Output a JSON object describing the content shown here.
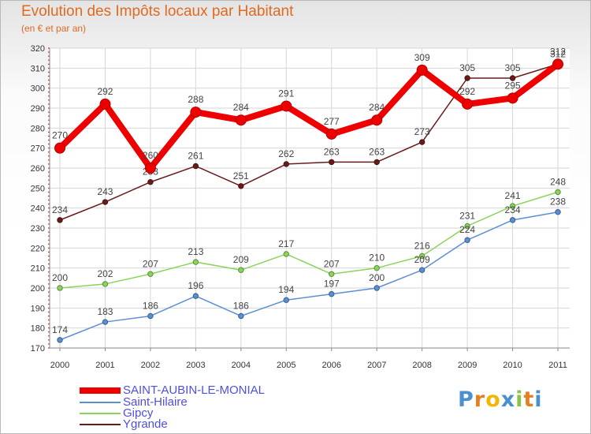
{
  "title": "Evolution des Impôts locaux par Habitant",
  "subtitle": "(en € et par an)",
  "chart_data": {
    "type": "line",
    "x": [
      "2000",
      "2001",
      "2002",
      "2003",
      "2004",
      "2005",
      "2006",
      "2007",
      "2008",
      "2009",
      "2010",
      "2011"
    ],
    "ylim": [
      170,
      320
    ],
    "yticks": [
      170,
      180,
      190,
      200,
      210,
      220,
      230,
      240,
      250,
      260,
      270,
      280,
      290,
      300,
      310,
      320
    ],
    "ytick_labels": [
      "170",
      "180",
      "190",
      "200",
      "210",
      "220",
      "230",
      "240",
      "250",
      "260",
      "270",
      "280",
      "290",
      "300",
      "310",
      "320"
    ],
    "grid": true,
    "series": [
      {
        "name": "Ygrande",
        "color": "#6b1a1a",
        "values": [
          234,
          243,
          253,
          261,
          251,
          262,
          263,
          263,
          273,
          305,
          305,
          312
        ],
        "labels": [
          "234",
          "243",
          "253",
          "261",
          "251",
          "262",
          "263",
          "263",
          "273",
          "305",
          "305",
          "312"
        ]
      },
      {
        "name": "Gipcy",
        "color": "#8bd45a",
        "values": [
          200,
          202,
          207,
          213,
          209,
          217,
          207,
          210,
          216,
          231,
          241,
          248
        ],
        "labels": [
          "200",
          "202",
          "207",
          "213",
          "209",
          "217",
          "207",
          "210",
          "216",
          "231",
          "241",
          "248"
        ]
      },
      {
        "name": "Saint-Hilaire",
        "color": "#5b8fd4",
        "values": [
          174,
          183,
          186,
          196,
          186,
          194,
          197,
          200,
          209,
          224,
          234,
          238
        ],
        "labels": [
          "174",
          "183",
          "186",
          "196",
          "186",
          "194",
          "197",
          "200",
          "209",
          "224",
          "234",
          "238"
        ]
      },
      {
        "name": "SAINT-AUBIN-LE-MONIAL",
        "color": "#ee0000",
        "values": [
          270,
          292,
          260,
          288,
          284,
          291,
          277,
          284,
          309,
          292,
          295,
          312
        ],
        "labels": [
          "270",
          "292",
          "260",
          "288",
          "284",
          "291",
          "277",
          "284",
          "309",
          "292",
          "295",
          "312"
        ]
      }
    ]
  },
  "legend": [
    {
      "label": "SAINT-AUBIN-LE-MONIAL",
      "color": "#ee0000"
    },
    {
      "label": "Saint-Hilaire",
      "color": "#5b8fd4"
    },
    {
      "label": "Gipcy",
      "color": "#8bd45a"
    },
    {
      "label": "Ygrande",
      "color": "#6b1a1a"
    }
  ],
  "logo": {
    "text": "Proxiti",
    "letters": [
      "P",
      "r",
      "o",
      "x",
      "i",
      "t",
      "i"
    ],
    "colors": [
      "#4a8fd0",
      "#e67e22",
      "#f2b705",
      "#4a8fd0",
      "#8bc34a",
      "#e67e22",
      "#4a8fd0"
    ]
  }
}
